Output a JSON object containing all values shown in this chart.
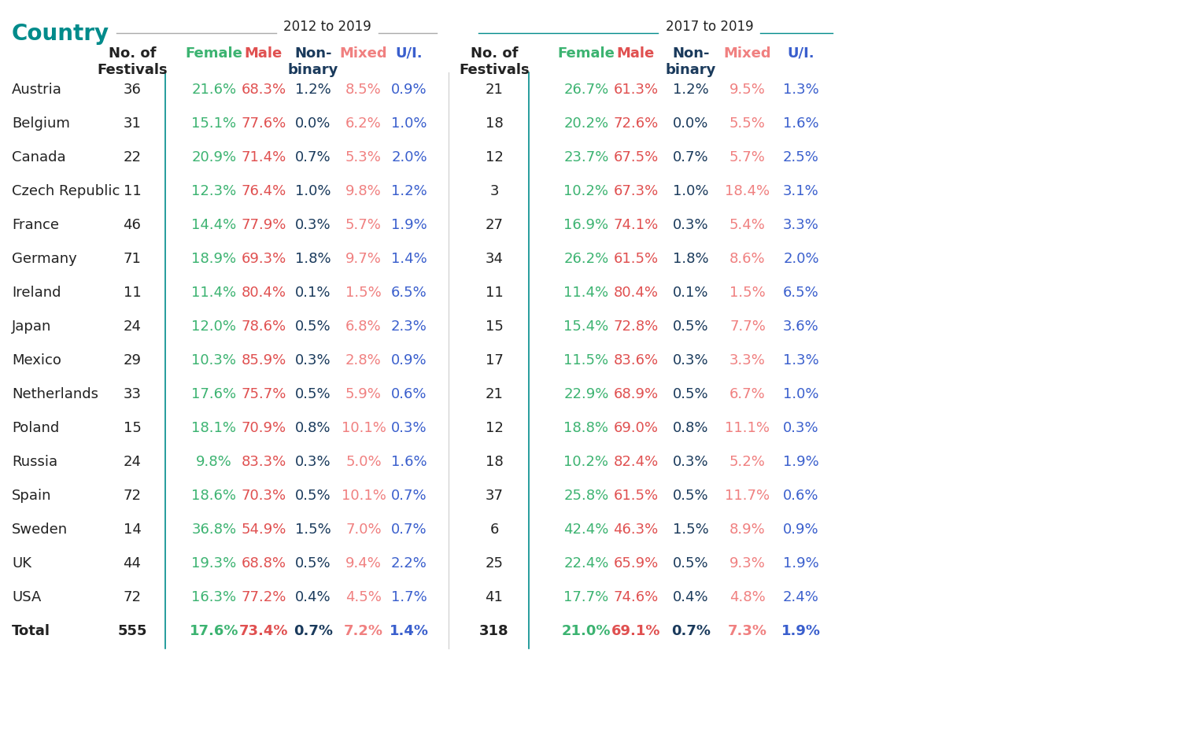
{
  "title": "Country",
  "period1": "2012 to 2019",
  "period2": "2017 to 2019",
  "countries": [
    "Austria",
    "Belgium",
    "Canada",
    "Czech Republic",
    "France",
    "Germany",
    "Ireland",
    "Japan",
    "Mexico",
    "Netherlands",
    "Poland",
    "Russia",
    "Spain",
    "Sweden",
    "UK",
    "USA",
    "Total"
  ],
  "p1_festivals": [
    36,
    31,
    22,
    11,
    46,
    71,
    11,
    24,
    29,
    33,
    15,
    24,
    72,
    14,
    44,
    72,
    555
  ],
  "p1_female": [
    "21.6%",
    "15.1%",
    "20.9%",
    "12.3%",
    "14.4%",
    "18.9%",
    "11.4%",
    "12.0%",
    "10.3%",
    "17.6%",
    "18.1%",
    "9.8%",
    "18.6%",
    "36.8%",
    "19.3%",
    "16.3%",
    "17.6%"
  ],
  "p1_male": [
    "68.3%",
    "77.6%",
    "71.4%",
    "76.4%",
    "77.9%",
    "69.3%",
    "80.4%",
    "78.6%",
    "85.9%",
    "75.7%",
    "70.9%",
    "83.3%",
    "70.3%",
    "54.9%",
    "68.8%",
    "77.2%",
    "73.4%"
  ],
  "p1_nonbin": [
    "1.2%",
    "0.0%",
    "0.7%",
    "1.0%",
    "0.3%",
    "1.8%",
    "0.1%",
    "0.5%",
    "0.3%",
    "0.5%",
    "0.8%",
    "0.3%",
    "0.5%",
    "1.5%",
    "0.5%",
    "0.4%",
    "0.7%"
  ],
  "p1_mixed": [
    "8.5%",
    "6.2%",
    "5.3%",
    "9.8%",
    "5.7%",
    "9.7%",
    "1.5%",
    "6.8%",
    "2.8%",
    "5.9%",
    "10.1%",
    "5.0%",
    "10.1%",
    "7.0%",
    "9.4%",
    "4.5%",
    "7.2%"
  ],
  "p1_ui": [
    "0.9%",
    "1.0%",
    "2.0%",
    "1.2%",
    "1.9%",
    "1.4%",
    "6.5%",
    "2.3%",
    "0.9%",
    "0.6%",
    "0.3%",
    "1.6%",
    "0.7%",
    "0.7%",
    "2.2%",
    "1.7%",
    "1.4%"
  ],
  "p2_festivals": [
    21,
    18,
    12,
    3,
    27,
    34,
    11,
    15,
    17,
    21,
    12,
    18,
    37,
    6,
    25,
    41,
    318
  ],
  "p2_female": [
    "26.7%",
    "20.2%",
    "23.7%",
    "10.2%",
    "16.9%",
    "26.2%",
    "11.4%",
    "15.4%",
    "11.5%",
    "22.9%",
    "18.8%",
    "10.2%",
    "25.8%",
    "42.4%",
    "22.4%",
    "17.7%",
    "21.0%"
  ],
  "p2_male": [
    "61.3%",
    "72.6%",
    "67.5%",
    "67.3%",
    "74.1%",
    "61.5%",
    "80.4%",
    "72.8%",
    "83.6%",
    "68.9%",
    "69.0%",
    "82.4%",
    "61.5%",
    "46.3%",
    "65.9%",
    "74.6%",
    "69.1%"
  ],
  "p2_nonbin": [
    "1.2%",
    "0.0%",
    "0.7%",
    "1.0%",
    "0.3%",
    "1.8%",
    "0.1%",
    "0.5%",
    "0.3%",
    "0.5%",
    "0.8%",
    "0.3%",
    "0.5%",
    "1.5%",
    "0.5%",
    "0.4%",
    "0.7%"
  ],
  "p2_mixed": [
    "9.5%",
    "5.5%",
    "5.7%",
    "18.4%",
    "5.4%",
    "8.6%",
    "1.5%",
    "7.7%",
    "3.3%",
    "6.7%",
    "11.1%",
    "5.2%",
    "11.7%",
    "8.9%",
    "9.3%",
    "4.8%",
    "7.3%"
  ],
  "p2_ui": [
    "1.3%",
    "1.6%",
    "2.5%",
    "3.1%",
    "3.3%",
    "2.0%",
    "6.5%",
    "3.6%",
    "1.3%",
    "1.0%",
    "0.3%",
    "1.9%",
    "0.6%",
    "0.9%",
    "1.9%",
    "2.4%",
    "1.9%"
  ],
  "color_title": "#008B8B",
  "color_female": "#3cb371",
  "color_male": "#e05050",
  "color_nonbin": "#1a3a5c",
  "color_mixed": "#f08080",
  "color_ui": "#3a5fcd",
  "color_divider": "#008B8B",
  "color_line_p1": "#aaaaaa",
  "color_line_p2": "#008B8B",
  "bg_color": "#ffffff"
}
